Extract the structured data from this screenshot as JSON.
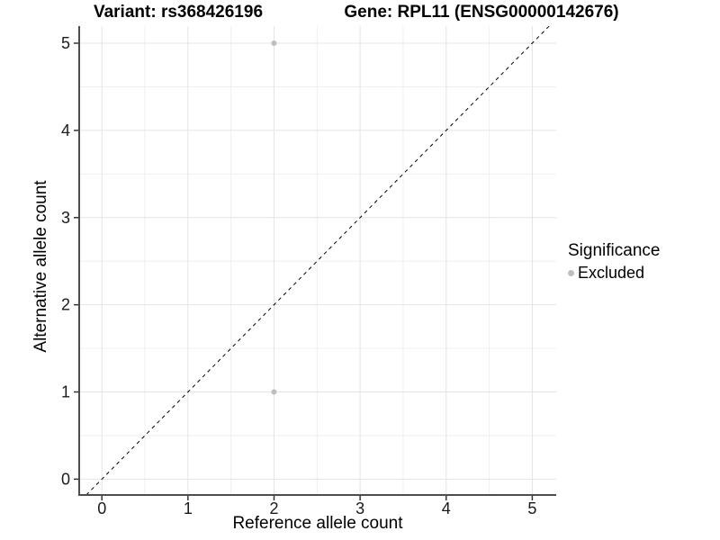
{
  "chart_data": {
    "type": "scatter",
    "title_left": "Variant: rs368426196",
    "title_right": "Gene: RPL11 (ENSG00000142676)",
    "xlabel": "Reference allele count",
    "ylabel": "Alternative allele count",
    "x_ticks": [
      0,
      1,
      2,
      3,
      4,
      5
    ],
    "y_ticks": [
      0,
      1,
      2,
      3,
      4,
      5
    ],
    "x_minor": [
      0.5,
      1.5,
      2.5,
      3.5,
      4.5
    ],
    "y_minor": [
      0.5,
      1.5,
      2.5,
      3.5,
      4.5
    ],
    "xlim": [
      -0.26,
      5.28
    ],
    "ylim": [
      -0.18,
      5.2
    ],
    "grid": "major+minor",
    "legend_position": "right",
    "reference_line": {
      "type": "identity",
      "style": "dashed",
      "color": "#000000"
    },
    "series": [
      {
        "name": "Excluded",
        "color": "#bebebe",
        "points": [
          {
            "x": 2,
            "y": 5
          },
          {
            "x": 2,
            "y": 1
          }
        ]
      }
    ],
    "legend": {
      "title": "Significance",
      "entries": [
        {
          "label": "Excluded",
          "color": "#bebebe"
        }
      ]
    }
  },
  "colors": {
    "axis_line": "#4d4d4d",
    "tick_mark": "#333333",
    "tick_text": "#1a1a1a",
    "grid_major": "#e4e4e4",
    "grid_minor": "#efefef",
    "point": "#bebebe",
    "background": "#ffffff"
  }
}
